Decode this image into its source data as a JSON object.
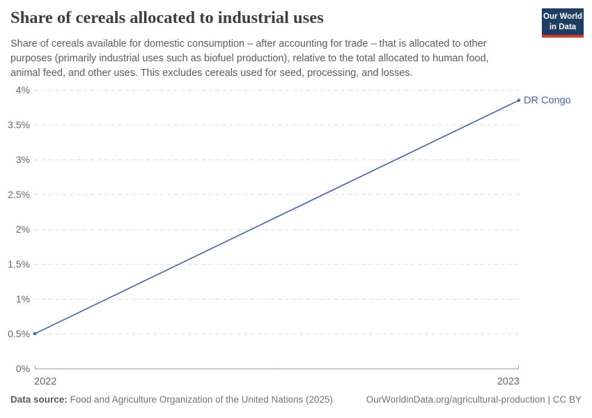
{
  "header": {
    "title": "Share of cereals allocated to industrial uses",
    "subtitle": "Share of cereals available for domestic consumption – after accounting for trade – that is allocated to other purposes (primarily industrial uses such as biofuel production), relative to the total allocated to human food, animal feed, and other uses. This excludes cereals used for seed, processing, and losses.",
    "logo": {
      "line1": "Our World",
      "line2": "in Data",
      "bg_color": "#1d3d63",
      "bar_color": "#d13c32"
    }
  },
  "chart_data": {
    "type": "line",
    "title": "Share of cereals allocated to industrial uses",
    "unit": "%",
    "x": [
      2022,
      2023
    ],
    "series": [
      {
        "name": "DR Congo",
        "values": [
          0.5,
          3.85
        ],
        "color": "#4a69a8"
      }
    ],
    "xlim": [
      2022,
      2023
    ],
    "ylim": [
      0,
      4
    ],
    "y_ticks": [
      0,
      0.5,
      1,
      1.5,
      2,
      2.5,
      3,
      3.5,
      4
    ],
    "y_tick_labels": [
      "0%",
      "0.5%",
      "1%",
      "1.5%",
      "2%",
      "2.5%",
      "3%",
      "3.5%",
      "4%"
    ],
    "x_tick_labels": [
      "2022",
      "2023"
    ],
    "grid": "horizontal-dashed",
    "gridline_color": "#dcdcdc",
    "axis_color": "#9e9e9e",
    "tick_label_color": "#666666",
    "legend_position": "end-of-line"
  },
  "footer": {
    "source_label": "Data source:",
    "source_text": " Food and Agriculture Organization of the United Nations (2025)",
    "link_text": "OurWorldinData.org/agricultural-production | CC BY"
  }
}
